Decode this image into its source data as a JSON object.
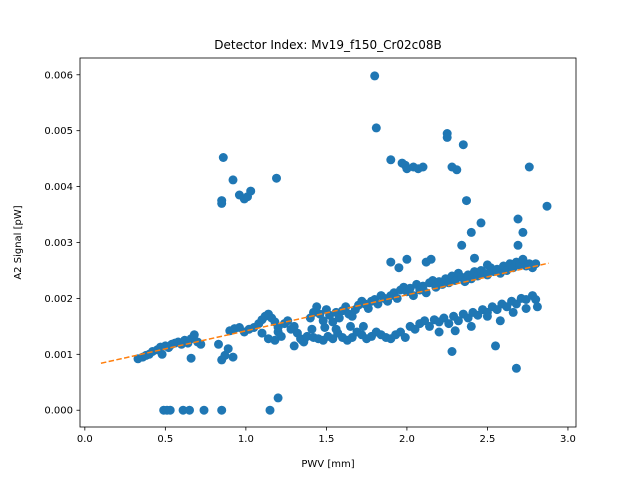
{
  "chart_data": {
    "type": "scatter",
    "title": "Detector Index: Mv19_f150_Cr02c08B",
    "xlabel": "PWV [mm]",
    "ylabel": "A2 Signal [pW]",
    "xlim": [
      -0.03,
      3.05
    ],
    "ylim": [
      -0.0003,
      0.0063
    ],
    "xticks": [
      0.0,
      0.5,
      1.0,
      1.5,
      2.0,
      2.5,
      3.0
    ],
    "xtick_labels": [
      "0.0",
      "0.5",
      "1.0",
      "1.5",
      "2.0",
      "2.5",
      "3.0"
    ],
    "yticks": [
      0.0,
      0.001,
      0.002,
      0.003,
      0.004,
      0.005,
      0.006
    ],
    "ytick_labels": [
      "0.000",
      "0.001",
      "0.002",
      "0.003",
      "0.004",
      "0.005",
      "0.006"
    ],
    "colors": {
      "points": "#1f77b4",
      "fit": "#ff7f0e",
      "axis": "#000000"
    },
    "series": [
      {
        "name": "measurements",
        "marker": "circle",
        "points": [
          [
            0.33,
            0.00092
          ],
          [
            0.36,
            0.00095
          ],
          [
            0.38,
            0.00098
          ],
          [
            0.4,
            0.001
          ],
          [
            0.42,
            0.00105
          ],
          [
            0.45,
            0.00108
          ],
          [
            0.47,
            0.00113
          ],
          [
            0.5,
            0.00115
          ],
          [
            0.52,
            0.00112
          ],
          [
            0.54,
            0.00118
          ],
          [
            0.56,
            0.0012
          ],
          [
            0.58,
            0.00122
          ],
          [
            0.6,
            0.00118
          ],
          [
            0.62,
            0.00125
          ],
          [
            0.64,
            0.0012
          ],
          [
            0.66,
            0.00128
          ],
          [
            0.68,
            0.00135
          ],
          [
            0.7,
            0.00122
          ],
          [
            0.72,
            0.00118
          ],
          [
            0.48,
            0.001
          ],
          [
            0.66,
            0.00093
          ],
          [
            0.49,
            0.0
          ],
          [
            0.51,
            0.0
          ],
          [
            0.53,
            0.0
          ],
          [
            0.61,
            0.0
          ],
          [
            0.65,
            0.0
          ],
          [
            0.74,
            0.0
          ],
          [
            0.85,
            0.0
          ],
          [
            1.15,
            0.0
          ],
          [
            0.83,
            0.00118
          ],
          [
            0.85,
            0.0009
          ],
          [
            0.87,
            0.00098
          ],
          [
            0.89,
            0.0011
          ],
          [
            0.92,
            0.00095
          ],
          [
            0.9,
            0.00142
          ],
          [
            0.93,
            0.00146
          ],
          [
            0.96,
            0.00148
          ],
          [
            0.99,
            0.0014
          ],
          [
            1.02,
            0.00145
          ],
          [
            1.05,
            0.00148
          ],
          [
            1.08,
            0.00155
          ],
          [
            1.1,
            0.00162
          ],
          [
            1.12,
            0.00168
          ],
          [
            1.14,
            0.00172
          ],
          [
            1.16,
            0.00165
          ],
          [
            1.18,
            0.00158
          ],
          [
            1.2,
            0.0014
          ],
          [
            1.22,
            0.00132
          ],
          [
            1.1,
            0.00138
          ],
          [
            1.14,
            0.00128
          ],
          [
            1.18,
            0.00125
          ],
          [
            1.2,
            0.00148
          ],
          [
            1.24,
            0.00155
          ],
          [
            1.26,
            0.0016
          ],
          [
            1.28,
            0.00145
          ],
          [
            1.3,
            0.0015
          ],
          [
            1.32,
            0.00138
          ],
          [
            1.34,
            0.00128
          ],
          [
            1.36,
            0.00122
          ],
          [
            1.3,
            0.00115
          ],
          [
            1.35,
            0.00125
          ],
          [
            1.38,
            0.00132
          ],
          [
            0.85,
            0.00375
          ],
          [
            0.85,
            0.0037
          ],
          [
            0.86,
            0.00452
          ],
          [
            0.92,
            0.00412
          ],
          [
            0.96,
            0.00385
          ],
          [
            0.99,
            0.00378
          ],
          [
            1.01,
            0.00382
          ],
          [
            1.03,
            0.00392
          ],
          [
            1.19,
            0.00415
          ],
          [
            1.2,
            0.00022
          ],
          [
            1.4,
            0.00165
          ],
          [
            1.42,
            0.00175
          ],
          [
            1.44,
            0.00185
          ],
          [
            1.46,
            0.00172
          ],
          [
            1.48,
            0.0016
          ],
          [
            1.5,
            0.0018
          ],
          [
            1.52,
            0.0017
          ],
          [
            1.54,
            0.00158
          ],
          [
            1.56,
            0.00175
          ],
          [
            1.58,
            0.00165
          ],
          [
            1.6,
            0.00178
          ],
          [
            1.62,
            0.00185
          ],
          [
            1.64,
            0.00172
          ],
          [
            1.66,
            0.00168
          ],
          [
            1.68,
            0.0018
          ],
          [
            1.7,
            0.00188
          ],
          [
            1.72,
            0.00195
          ],
          [
            1.74,
            0.0019
          ],
          [
            1.76,
            0.00182
          ],
          [
            1.78,
            0.00195
          ],
          [
            1.8,
            0.00198
          ],
          [
            1.82,
            0.0019
          ],
          [
            1.84,
            0.00205
          ],
          [
            1.86,
            0.002
          ],
          [
            1.88,
            0.00195
          ],
          [
            1.42,
            0.0013
          ],
          [
            1.45,
            0.00128
          ],
          [
            1.48,
            0.00125
          ],
          [
            1.51,
            0.00132
          ],
          [
            1.54,
            0.00128
          ],
          [
            1.57,
            0.00138
          ],
          [
            1.6,
            0.0013
          ],
          [
            1.63,
            0.00125
          ],
          [
            1.66,
            0.0013
          ],
          [
            1.69,
            0.0014
          ],
          [
            1.72,
            0.00135
          ],
          [
            1.75,
            0.00128
          ],
          [
            1.78,
            0.00132
          ],
          [
            1.81,
            0.0014
          ],
          [
            1.84,
            0.00135
          ],
          [
            1.87,
            0.0013
          ],
          [
            1.9,
            0.00128
          ],
          [
            1.93,
            0.00135
          ],
          [
            1.96,
            0.0014
          ],
          [
            1.99,
            0.0013
          ],
          [
            1.41,
            0.00145
          ],
          [
            1.49,
            0.00148
          ],
          [
            1.56,
            0.00145
          ],
          [
            1.65,
            0.0015
          ],
          [
            1.73,
            0.0015
          ],
          [
            1.9,
            0.00205
          ],
          [
            1.92,
            0.0021
          ],
          [
            1.94,
            0.002
          ],
          [
            1.96,
            0.00215
          ],
          [
            1.98,
            0.0022
          ],
          [
            2.0,
            0.00212
          ],
          [
            2.02,
            0.00218
          ],
          [
            2.04,
            0.00205
          ],
          [
            2.06,
            0.00225
          ],
          [
            2.08,
            0.00215
          ],
          [
            2.1,
            0.00222
          ],
          [
            2.12,
            0.0021
          ],
          [
            2.14,
            0.00228
          ],
          [
            2.16,
            0.00232
          ],
          [
            2.18,
            0.0022
          ],
          [
            2.2,
            0.0023
          ],
          [
            2.22,
            0.00225
          ],
          [
            2.24,
            0.00235
          ],
          [
            2.26,
            0.00228
          ],
          [
            2.28,
            0.0024
          ],
          [
            2.3,
            0.00232
          ],
          [
            2.32,
            0.00245
          ],
          [
            2.34,
            0.00238
          ],
          [
            2.36,
            0.0023
          ],
          [
            2.38,
            0.00242
          ],
          [
            2.4,
            0.00235
          ],
          [
            2.42,
            0.00248
          ],
          [
            2.44,
            0.0024
          ],
          [
            2.46,
            0.0025
          ],
          [
            2.48,
            0.00245
          ],
          [
            2.5,
            0.00242
          ],
          [
            2.52,
            0.00255
          ],
          [
            2.54,
            0.00248
          ],
          [
            2.56,
            0.00252
          ],
          [
            2.58,
            0.00245
          ],
          [
            2.6,
            0.00258
          ],
          [
            2.62,
            0.0025
          ],
          [
            2.64,
            0.00262
          ],
          [
            2.66,
            0.00255
          ],
          [
            2.68,
            0.00265
          ],
          [
            2.7,
            0.0026
          ],
          [
            2.72,
            0.0027
          ],
          [
            2.74,
            0.00258
          ],
          [
            2.76,
            0.00262
          ],
          [
            2.78,
            0.00255
          ],
          [
            2.02,
            0.0015
          ],
          [
            2.05,
            0.00145
          ],
          [
            2.08,
            0.00155
          ],
          [
            2.11,
            0.0016
          ],
          [
            2.14,
            0.0015
          ],
          [
            2.17,
            0.00162
          ],
          [
            2.2,
            0.00158
          ],
          [
            2.23,
            0.00165
          ],
          [
            2.26,
            0.00155
          ],
          [
            2.29,
            0.00168
          ],
          [
            2.32,
            0.0016
          ],
          [
            2.35,
            0.00172
          ],
          [
            2.38,
            0.00165
          ],
          [
            2.41,
            0.00175
          ],
          [
            2.44,
            0.0017
          ],
          [
            2.47,
            0.0018
          ],
          [
            2.5,
            0.00175
          ],
          [
            2.53,
            0.00185
          ],
          [
            2.56,
            0.0018
          ],
          [
            2.59,
            0.0019
          ],
          [
            2.62,
            0.00185
          ],
          [
            2.65,
            0.00195
          ],
          [
            2.68,
            0.0019
          ],
          [
            2.71,
            0.002
          ],
          [
            2.74,
            0.00198
          ],
          [
            2.78,
            0.00205
          ],
          [
            2.8,
            0.00198
          ],
          [
            2.5,
            0.00168
          ],
          [
            2.58,
            0.0016
          ],
          [
            2.66,
            0.00175
          ],
          [
            2.74,
            0.00182
          ],
          [
            2.4,
            0.0015
          ],
          [
            2.3,
            0.00142
          ],
          [
            2.2,
            0.0014
          ],
          [
            1.8,
            0.00598
          ],
          [
            1.81,
            0.00505
          ],
          [
            1.9,
            0.00448
          ],
          [
            1.97,
            0.00442
          ],
          [
            1.99,
            0.00438
          ],
          [
            2.0,
            0.00432
          ],
          [
            2.04,
            0.00435
          ],
          [
            2.07,
            0.00432
          ],
          [
            2.1,
            0.00435
          ],
          [
            2.25,
            0.00495
          ],
          [
            2.25,
            0.00488
          ],
          [
            2.28,
            0.00435
          ],
          [
            2.31,
            0.0043
          ],
          [
            2.35,
            0.00475
          ],
          [
            2.37,
            0.00375
          ],
          [
            2.4,
            0.00318
          ],
          [
            2.34,
            0.00295
          ],
          [
            2.46,
            0.00335
          ],
          [
            2.28,
            0.00105
          ],
          [
            2.55,
            0.00115
          ],
          [
            2.68,
            0.00075
          ],
          [
            2.69,
            0.00342
          ],
          [
            2.72,
            0.00318
          ],
          [
            2.69,
            0.00295
          ],
          [
            2.76,
            0.00435
          ],
          [
            2.8,
            0.00262
          ],
          [
            2.81,
            0.00185
          ],
          [
            2.87,
            0.00365
          ],
          [
            1.9,
            0.00265
          ],
          [
            2.0,
            0.0027
          ],
          [
            1.95,
            0.00255
          ],
          [
            2.12,
            0.00265
          ],
          [
            2.15,
            0.0027
          ],
          [
            2.42,
            0.00272
          ],
          [
            2.5,
            0.0026
          ]
        ]
      },
      {
        "name": "linear fit",
        "style": "dashed",
        "line": [
          [
            0.1,
            0.00084
          ],
          [
            2.88,
            0.00263
          ]
        ]
      }
    ]
  }
}
